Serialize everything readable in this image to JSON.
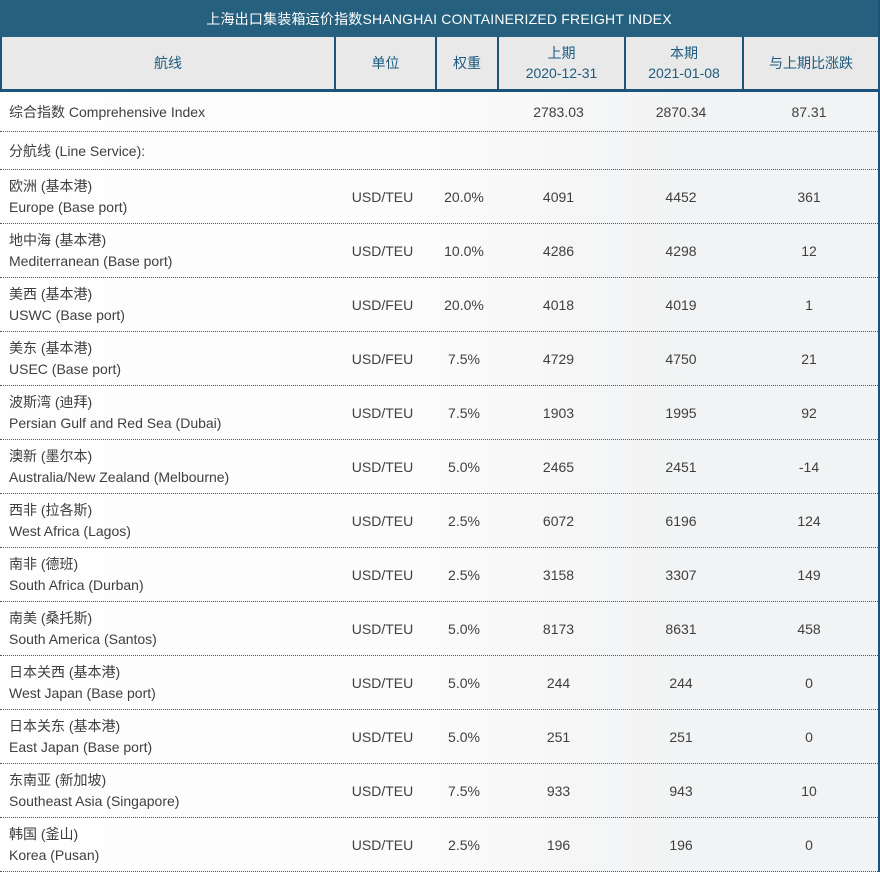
{
  "title": "上海出口集装箱运价指数SHANGHAI CONTAINERIZED FREIGHT INDEX",
  "table": {
    "columns": {
      "route": "航线",
      "unit": "单位",
      "weight": "权重",
      "prev_label": "上期",
      "prev_date": "2020-12-31",
      "curr_label": "本期",
      "curr_date": "2021-01-08",
      "change": "与上期比涨跌"
    },
    "comprehensive": {
      "name": "综合指数 Comprehensive Index",
      "prev": "2783.03",
      "curr": "2870.34",
      "change": "87.31"
    },
    "section_label": "分航线 (Line Service):",
    "routes": [
      {
        "cn": "欧洲 (基本港)",
        "en": "Europe (Base port)",
        "unit": "USD/TEU",
        "weight": "20.0%",
        "prev": "4091",
        "curr": "4452",
        "change": "361"
      },
      {
        "cn": "地中海 (基本港)",
        "en": "Mediterranean (Base port)",
        "unit": "USD/TEU",
        "weight": "10.0%",
        "prev": "4286",
        "curr": "4298",
        "change": "12"
      },
      {
        "cn": "美西 (基本港)",
        "en": "USWC (Base port)",
        "unit": "USD/FEU",
        "weight": "20.0%",
        "prev": "4018",
        "curr": "4019",
        "change": "1"
      },
      {
        "cn": "美东 (基本港)",
        "en": "USEC (Base port)",
        "unit": "USD/FEU",
        "weight": "7.5%",
        "prev": "4729",
        "curr": "4750",
        "change": "21"
      },
      {
        "cn": "波斯湾 (迪拜)",
        "en": "Persian Gulf and Red Sea (Dubai)",
        "unit": "USD/TEU",
        "weight": "7.5%",
        "prev": "1903",
        "curr": "1995",
        "change": "92"
      },
      {
        "cn": "澳新 (墨尔本)",
        "en": "Australia/New Zealand (Melbourne)",
        "unit": "USD/TEU",
        "weight": "5.0%",
        "prev": "2465",
        "curr": "2451",
        "change": "-14"
      },
      {
        "cn": "西非 (拉各斯)",
        "en": "West Africa (Lagos)",
        "unit": "USD/TEU",
        "weight": "2.5%",
        "prev": "6072",
        "curr": "6196",
        "change": "124"
      },
      {
        "cn": "南非 (德班)",
        "en": "South Africa (Durban)",
        "unit": "USD/TEU",
        "weight": "2.5%",
        "prev": "3158",
        "curr": "3307",
        "change": "149"
      },
      {
        "cn": "南美 (桑托斯)",
        "en": "South America (Santos)",
        "unit": "USD/TEU",
        "weight": "5.0%",
        "prev": "8173",
        "curr": "8631",
        "change": "458"
      },
      {
        "cn": "日本关西 (基本港)",
        "en": "West Japan (Base port)",
        "unit": "USD/TEU",
        "weight": "5.0%",
        "prev": "244",
        "curr": "244",
        "change": "0"
      },
      {
        "cn": "日本关东 (基本港)",
        "en": "East Japan (Base port)",
        "unit": "USD/TEU",
        "weight": "5.0%",
        "prev": "251",
        "curr": "251",
        "change": "0"
      },
      {
        "cn": "东南亚 (新加坡)",
        "en": "Southeast Asia (Singapore)",
        "unit": "USD/TEU",
        "weight": "7.5%",
        "prev": "933",
        "curr": "943",
        "change": "10"
      },
      {
        "cn": "韩国 (釜山)",
        "en": "Korea (Pusan)",
        "unit": "USD/TEU",
        "weight": "2.5%",
        "prev": "196",
        "curr": "196",
        "change": "0"
      }
    ]
  },
  "colors": {
    "title_bar_bg": "#25607f",
    "title_text": "#ffffff",
    "header_bg": "#e9e9e9",
    "header_text": "#1d5a7e",
    "border_dark": "#1c537a",
    "dotted_line": "#2b6189",
    "body_text": "#3f3f3f"
  }
}
